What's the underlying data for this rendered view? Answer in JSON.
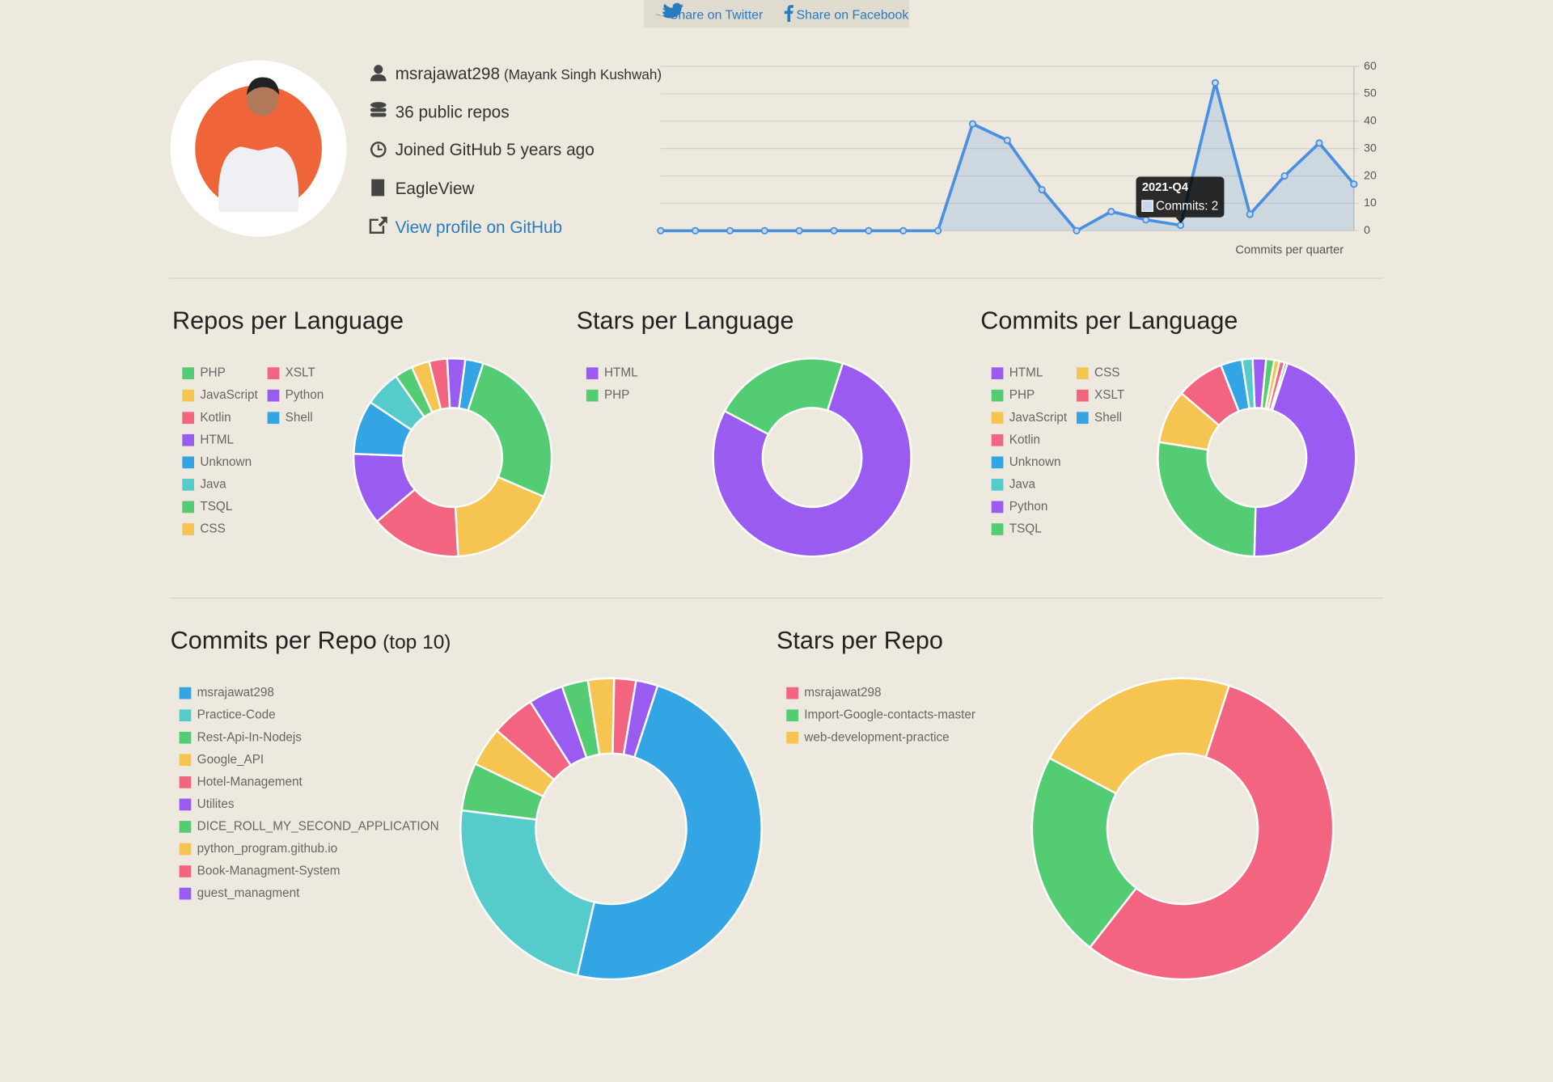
{
  "share": {
    "twitter": "Share on Twitter",
    "facebook": "Share on Facebook"
  },
  "profile": {
    "username": "msrajawat298",
    "full_name": "(Mayank Singh Kushwah)",
    "repos": "36 public repos",
    "joined": "Joined GitHub 5 years ago",
    "company": "EagleView",
    "link": "View profile on GitHub"
  },
  "chart_data": [
    {
      "type": "line",
      "x_label": "Commits per quarter",
      "categories": [
        null,
        null,
        null,
        null,
        null,
        null,
        null,
        null,
        null,
        null,
        null,
        null,
        null,
        null,
        null,
        "2021-Q4",
        null,
        null,
        null,
        null,
        null
      ],
      "series": [
        {
          "color": "#4a90e2",
          "values": [
            0,
            0,
            0,
            0,
            0,
            0,
            0,
            0,
            0,
            39,
            33,
            15,
            0,
            7,
            4,
            2,
            54,
            6,
            20,
            32,
            17
          ]
        }
      ],
      "ylim": [
        0,
        60
      ],
      "yticks": [
        0,
        10,
        20,
        30,
        40,
        50,
        60
      ],
      "grid": true,
      "tooltip": {
        "text": "Commits: 2"
      }
    },
    {
      "type": "doughnut",
      "title": "Repos per Language",
      "categories": [
        "PHP",
        "JavaScript",
        "Kotlin",
        "HTML",
        "Unknown",
        "Java",
        "TSQL",
        "CSS",
        "XSLT",
        "Python",
        "Shell"
      ],
      "values": [
        9,
        6,
        5,
        4,
        3,
        2,
        1,
        1,
        1,
        1,
        1
      ],
      "colors": [
        "#54cc74",
        "#f5c451",
        "#f26480",
        "#9a5cf0",
        "#33a5e5",
        "#56cbcc",
        "#54cc74",
        "#f5c451",
        "#f26480",
        "#9a5cf0",
        "#33a5e5"
      ]
    },
    {
      "type": "doughnut",
      "title": "Stars per Language",
      "categories": [
        "HTML",
        "PHP"
      ],
      "values": [
        7,
        2
      ],
      "colors": [
        "#9a5cf0",
        "#54cc74"
      ]
    },
    {
      "type": "doughnut",
      "title": "Commits per Language",
      "categories": [
        "HTML",
        "PHP",
        "JavaScript",
        "Kotlin",
        "Unknown",
        "Java",
        "Python",
        "TSQL",
        "CSS",
        "XSLT",
        "Shell"
      ],
      "values": [
        104,
        62,
        20,
        18,
        8,
        4,
        5,
        3,
        2,
        2,
        1
      ],
      "colors": [
        "#9a5cf0",
        "#54cc74",
        "#f5c451",
        "#f26480",
        "#33a5e5",
        "#56cbcc",
        "#9a5cf0",
        "#54cc74",
        "#f5c451",
        "#f26480",
        "#33a5e5"
      ]
    },
    {
      "type": "doughnut",
      "title": "Commits per Repo",
      "subtitle": "(top 10)",
      "categories": [
        "msrajawat298",
        "Practice-Code",
        "Rest-Api-In-Nodejs",
        "Google_API",
        "Hotel-Management",
        "Utilites",
        "DICE_ROLL_MY_SECOND_APPLICATION",
        "python_program.github.io",
        "Book-Managment-System",
        "guest_managment"
      ],
      "values": [
        104,
        50,
        11,
        9,
        10,
        8,
        6,
        6,
        5,
        5
      ],
      "colors": [
        "#33a5e5",
        "#56cbcc",
        "#54cc74",
        "#f5c451",
        "#f26480",
        "#9a5cf0",
        "#54cc74",
        "#f5c451",
        "#f26480",
        "#9a5cf0"
      ]
    },
    {
      "type": "doughnut",
      "title": "Stars per Repo",
      "categories": [
        "msrajawat298",
        "Import-Google-contacts-master",
        "web-development-practice"
      ],
      "values": [
        5,
        2,
        2
      ],
      "colors": [
        "#f26480",
        "#54cc74",
        "#f5c451"
      ]
    }
  ]
}
